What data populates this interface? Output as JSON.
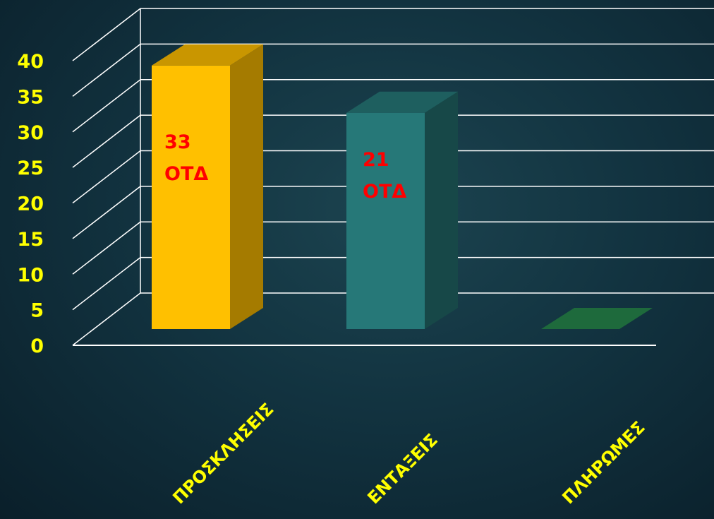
{
  "chart_data": {
    "type": "bar",
    "title": "",
    "xlabel": "",
    "ylabel": "",
    "categories": [
      "ΠΡΟΣΚΛΗΣΕΙΣ",
      "ΕΝΤΑΞΕΙΣ",
      "ΠΛΗΡΩΜΕΣ"
    ],
    "values": [
      39,
      32,
      0
    ],
    "ylim": [
      0,
      40
    ],
    "yticks": [
      "0",
      "5",
      "10",
      "15",
      "20",
      "25",
      "30",
      "35",
      "40"
    ],
    "data_labels": [
      {
        "line1": "33",
        "line2": "ΟΤΔ"
      },
      {
        "line1": "21",
        "line2": "ΟΤΔ"
      },
      {
        "line1": "",
        "line2": ""
      }
    ],
    "grid": true,
    "style": "3d",
    "colors": {
      "bar_fronts": [
        "#ffc000",
        "#267878",
        "#1e6a3c"
      ],
      "bar_tops": [
        "#c99600",
        "#1e5f5f",
        "#2a8a50"
      ],
      "bar_sides": [
        "#a57b00",
        "#174848",
        "#175530"
      ],
      "label_color": "#ff0000",
      "tick_color": "#ffff00",
      "grid_color": "#ffffff"
    }
  }
}
